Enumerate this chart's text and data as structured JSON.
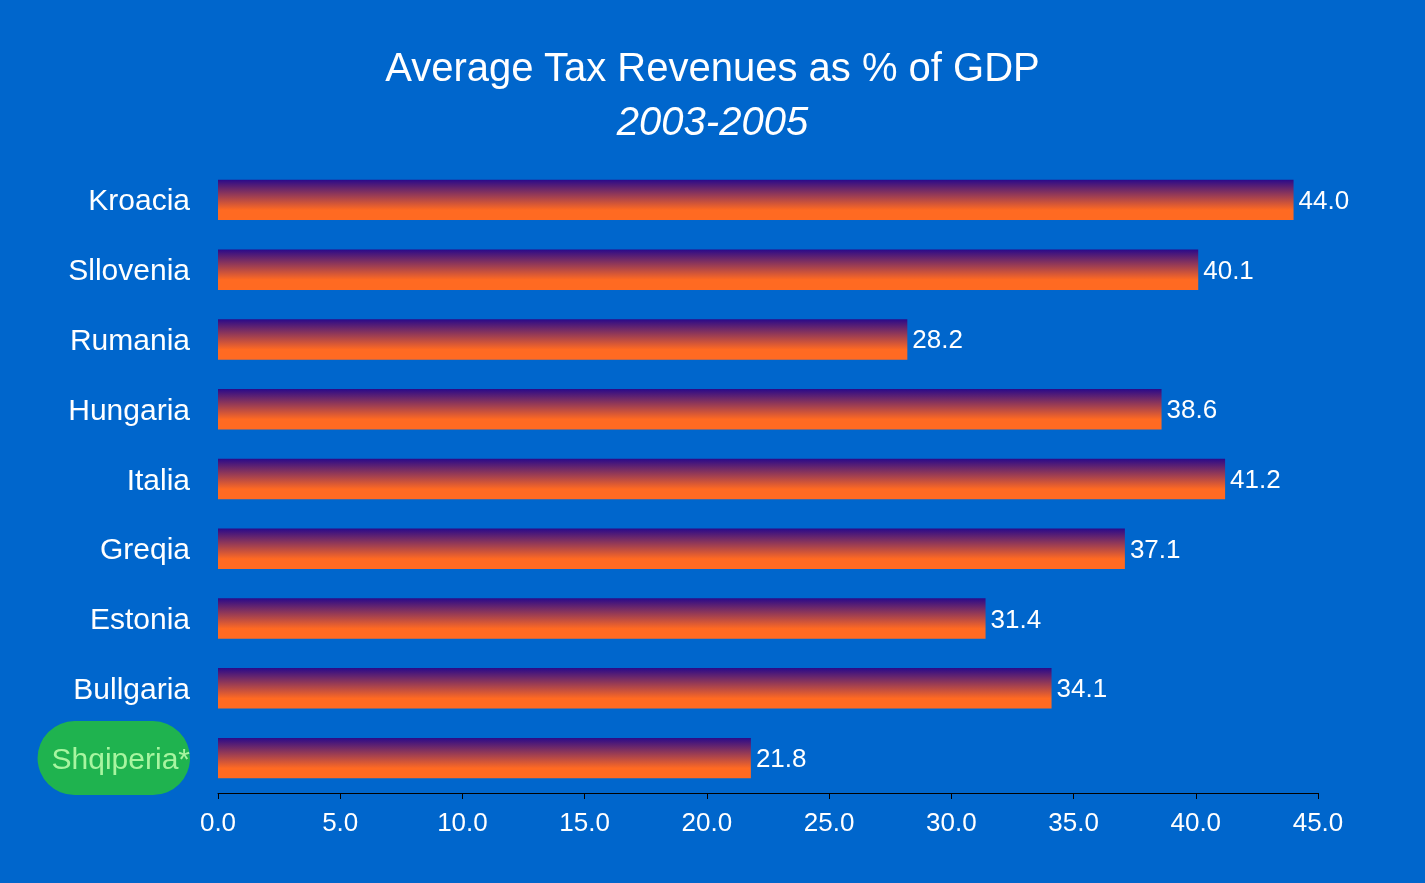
{
  "chart_data": {
    "type": "bar",
    "orientation": "horizontal",
    "title": "Average Tax Revenues as % of GDP",
    "subtitle": "2003-2005",
    "categories": [
      "Kroacia",
      "Sllovenia",
      "Rumania",
      "Hungaria",
      "Italia",
      "Greqia",
      "Estonia",
      "Bullgaria",
      "Shqiperia*"
    ],
    "values": [
      44.0,
      40.1,
      28.2,
      38.6,
      41.2,
      37.1,
      31.4,
      34.1,
      21.8
    ],
    "color": "#ff6a22",
    "xlim": [
      0,
      45
    ],
    "xticks": [
      {
        "value": 0,
        "label": "0.0"
      },
      {
        "value": 5,
        "label": "5.0"
      },
      {
        "value": 10,
        "label": "10.0"
      },
      {
        "value": 15,
        "label": "15.0"
      },
      {
        "value": 20,
        "label": "20.0"
      },
      {
        "value": 25,
        "label": "25.0"
      },
      {
        "value": 30,
        "label": "30.0"
      },
      {
        "value": 35,
        "label": "35.0"
      },
      {
        "value": 40,
        "label": "40.0"
      },
      {
        "value": 45,
        "label": "45.0"
      }
    ],
    "value_labels": [
      "44.0",
      "40.1",
      "28.2",
      "38.6",
      "41.2",
      "37.1",
      "31.4",
      "34.1",
      "21.8"
    ],
    "grid": false
  }
}
